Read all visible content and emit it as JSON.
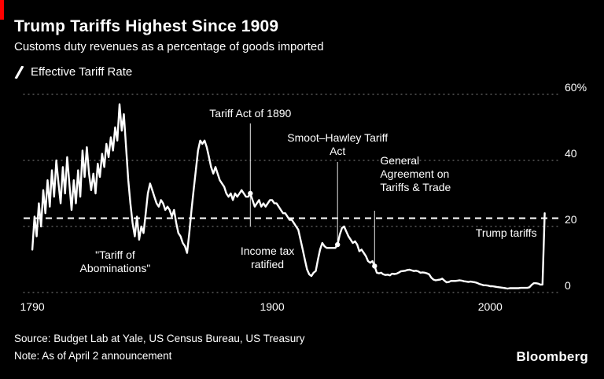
{
  "header": {
    "title": "Trump Tariffs Highest Since 1909",
    "subtitle": "Customs duty revenues as a percentage of goods imported"
  },
  "legend": {
    "label": "Effective Tariff Rate"
  },
  "footer": {
    "source": "Source: Budget Lab at Yale, US Census Bureau, US Treasury",
    "note": "Note: As of April 2 announcement",
    "brand": "Bloomberg"
  },
  "colors": {
    "background": "#000000",
    "line": "#ffffff",
    "grid": "#6b6b6b",
    "accent_red": "#ff0000",
    "text": "#ffffff"
  },
  "icons": [
    {
      "name": "line-series-icon",
      "glyph": "/"
    }
  ],
  "chart_data": {
    "type": "line",
    "title": "Trump Tariffs Highest Since 1909",
    "subtitle": "Customs duty revenues as a percentage of goods imported",
    "grid": "dotted-horizontal",
    "legend_position": "top-left",
    "xlim": [
      1786,
      2032
    ],
    "ylim": [
      0,
      60
    ],
    "yticks": [
      {
        "value": 60,
        "label": "60%"
      },
      {
        "value": 40,
        "label": "40"
      },
      {
        "value": 20,
        "label": "20"
      },
      {
        "value": 0,
        "label": "0"
      }
    ],
    "xticks": [
      {
        "value": 1790,
        "label": "1790"
      },
      {
        "value": 1900,
        "label": "1900"
      },
      {
        "value": 2000,
        "label": "2000"
      }
    ],
    "reference_line": {
      "value": 22.5,
      "style": "dashed"
    },
    "annotations": [
      {
        "text": "Tariff Act of 1890",
        "year": 1890,
        "type": "vline"
      },
      {
        "text": "Smoot–Hawley Tariff Act",
        "year": 1930,
        "type": "vline"
      },
      {
        "text": "General Agreement on Tariffs & Trade",
        "year": 1947,
        "type": "vline"
      },
      {
        "text": "\"Tariff of Abominations\"",
        "year": 1828,
        "type": "label"
      },
      {
        "text": "Income tax ratified",
        "year": 1913,
        "type": "label"
      },
      {
        "text": "Trump tariffs",
        "year": 2025,
        "type": "label"
      }
    ],
    "series": [
      {
        "name": "Effective Tariff Rate",
        "x_start": 1790,
        "x_step": 1,
        "x_end": 2025,
        "values": [
          13,
          23,
          17,
          27,
          20,
          31,
          24,
          34,
          26,
          37,
          29,
          40,
          33,
          27,
          38,
          30,
          41,
          33,
          25,
          34,
          27,
          37,
          29,
          43,
          35,
          44,
          36,
          31,
          36,
          30,
          39,
          35,
          42,
          38,
          45,
          41,
          47,
          43,
          50,
          46,
          57,
          49,
          54,
          44,
          34,
          27,
          21,
          17,
          23,
          16,
          20,
          18,
          24,
          30,
          33,
          31,
          29,
          27,
          26,
          28,
          27,
          25,
          26,
          25,
          23,
          25,
          21,
          18,
          17,
          15,
          14,
          12,
          18,
          25,
          31,
          37,
          43,
          46,
          45,
          46,
          44,
          41,
          38,
          36,
          38,
          36,
          34,
          33,
          32,
          30,
          29,
          30,
          28,
          30,
          29,
          30,
          31,
          30,
          29,
          29,
          30,
          28,
          26,
          27,
          28,
          26,
          27,
          26,
          27,
          28,
          28,
          27,
          27,
          26,
          25,
          24,
          24,
          23,
          22,
          22,
          21,
          20,
          19,
          16,
          13,
          10,
          7,
          5.5,
          5,
          6,
          6.5,
          10,
          13,
          15,
          14,
          13.5,
          13.5,
          13.5,
          13.5,
          13.5,
          14.5,
          17.5,
          19.5,
          20,
          18.5,
          17,
          16,
          15,
          15.5,
          14.5,
          12.5,
          13,
          12,
          11,
          9.5,
          9,
          9.5,
          8,
          6,
          5.8,
          6,
          5.5,
          5.3,
          5.4,
          5.2,
          5.7,
          5.6,
          5.7,
          6,
          6.4,
          6.5,
          6.6,
          6.8,
          6.9,
          6.7,
          6.5,
          6.6,
          6.4,
          6,
          6.1,
          6,
          5.8,
          5.5,
          4.5,
          3.9,
          3.7,
          3.8,
          3.9,
          4.2,
          3.6,
          3.1,
          3.2,
          3.5,
          3.5,
          3.5,
          3.6,
          3.7,
          3.6,
          3.4,
          3.3,
          3.2,
          3.3,
          3.2,
          3.1,
          2.9,
          2.6,
          2.4,
          2.2,
          2.2,
          2.1,
          1.9,
          1.9,
          1.8,
          1.7,
          1.6,
          1.5,
          1.4,
          1.3,
          1.2,
          1.3,
          1.3,
          1.3,
          1.3,
          1.3,
          1.4,
          1.4,
          1.4,
          1.4,
          1.6,
          2.3,
          2.8,
          2.8,
          2.7,
          2.4,
          2.4,
          24
        ]
      }
    ]
  }
}
